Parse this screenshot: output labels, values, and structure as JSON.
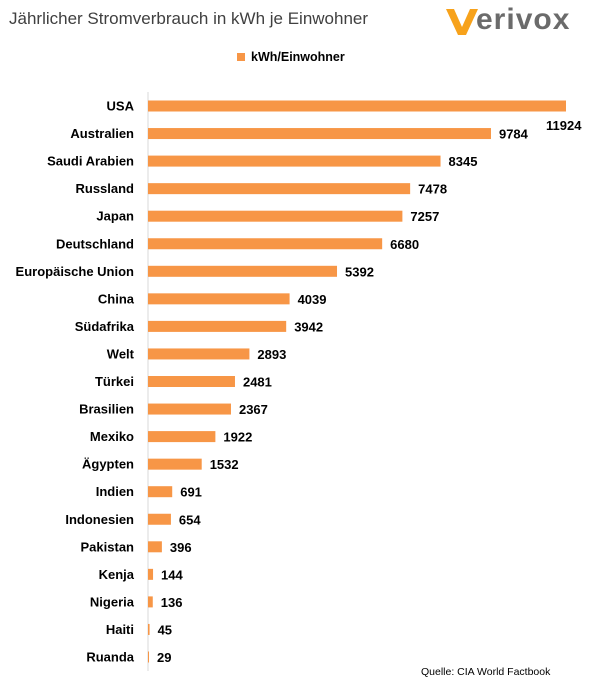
{
  "chart_data": {
    "type": "bar",
    "orientation": "horizontal",
    "title": "Jährlicher Stromverbrauch in kWh je Einwohner",
    "legend": {
      "position": "top",
      "entries": [
        "kWh/Einwohner"
      ]
    },
    "categories": [
      "USA",
      "Australien",
      "Saudi Arabien",
      "Russland",
      "Japan",
      "Deutschland",
      "Europäische Union",
      "China",
      "Südafrika",
      "Welt",
      "Türkei",
      "Brasilien",
      "Mexiko",
      "Ägypten",
      "Indien",
      "Indonesien",
      "Pakistan",
      "Kenja",
      "Nigeria",
      "Haiti",
      "Ruanda"
    ],
    "series": [
      {
        "name": "kWh/Einwohner",
        "values": [
          11924,
          9784,
          8345,
          7478,
          7257,
          6680,
          5392,
          4039,
          3942,
          2893,
          2481,
          2367,
          1922,
          1532,
          691,
          654,
          396,
          144,
          136,
          45,
          29
        ],
        "color": "#f79646"
      }
    ],
    "data_labels": [
      "11924",
      "9784",
      "8345",
      "7478",
      "7257",
      "6680",
      "5392",
      "4039",
      "3942",
      "2893",
      "2481",
      "2367",
      "1922",
      "1532",
      "691",
      "654",
      "396",
      "144",
      "136",
      "45",
      "29"
    ],
    "xlim": [
      0,
      11924
    ],
    "grid": false
  },
  "logo": {
    "text": "verivox",
    "color": "#f7a21b"
  },
  "source": "Quelle: CIA World Factbook"
}
